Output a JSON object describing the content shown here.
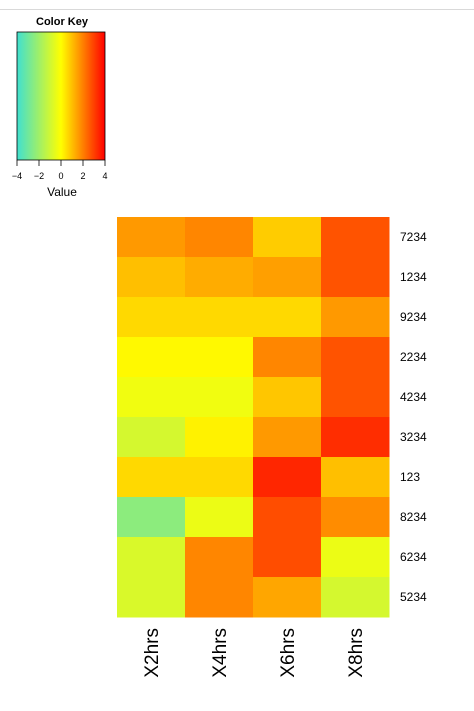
{
  "chart_data": {
    "type": "heatmap",
    "columns": [
      "X2hrs",
      "X4hrs",
      "X6hrs",
      "X8hrs"
    ],
    "rows": [
      "7234",
      "1234",
      "9234",
      "2234",
      "4234",
      "3234",
      "123",
      "8234",
      "6234",
      "5234"
    ],
    "values": [
      [
        1.6,
        1.9,
        0.8,
        2.7
      ],
      [
        1.0,
        1.3,
        1.5,
        2.7
      ],
      [
        0.6,
        0.6,
        0.6,
        1.6
      ],
      [
        0.1,
        0.1,
        1.9,
        2.7
      ],
      [
        -0.3,
        -0.3,
        0.9,
        2.7
      ],
      [
        -0.9,
        0.2,
        1.6,
        3.3
      ],
      [
        0.6,
        0.6,
        3.4,
        1.0
      ],
      [
        -2.4,
        -0.4,
        2.8,
        1.8
      ],
      [
        -0.8,
        1.9,
        2.8,
        -0.4
      ],
      [
        -0.8,
        1.9,
        1.4,
        -0.9
      ]
    ],
    "key": {
      "title": "Color Key",
      "xlabel": "Value",
      "range": [
        -4,
        4
      ],
      "ticks": [
        "−4",
        "−2",
        "0",
        "2",
        "4"
      ],
      "tick_values": [
        -4,
        -2,
        0,
        2,
        4
      ]
    },
    "colors": {
      "low": "#40E0D0",
      "mid": "#FFFF00",
      "high": "#FF0000"
    }
  }
}
